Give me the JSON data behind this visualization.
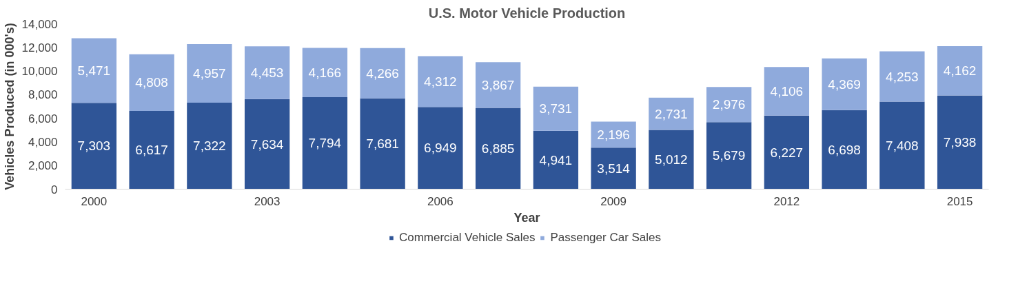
{
  "chart_data": {
    "type": "bar",
    "title": "U.S. Motor Vehicle Production",
    "xlabel": "Year",
    "ylabel": "Vehicles Produced (in 000's)",
    "categories": [
      "2000",
      null,
      null,
      "2003",
      null,
      null,
      "2006",
      null,
      null,
      "2009",
      null,
      null,
      "2012",
      null,
      null,
      "2015"
    ],
    "stacked": true,
    "series": [
      {
        "name": "Commercial Vehicle Sales",
        "color": "#2f5597",
        "values": [
          7303,
          6617,
          7322,
          7634,
          7794,
          7681,
          6949,
          6885,
          4941,
          3514,
          5012,
          5679,
          6227,
          6698,
          7408,
          7938
        ],
        "value_labels": [
          "7,303",
          "6,617",
          "7,322",
          "7,634",
          "7,794",
          "7,681",
          "6,949",
          "6,885",
          "4,941",
          "3,514",
          "5,012",
          "5,679",
          "6,227",
          "6,698",
          "7,408",
          "7,938"
        ]
      },
      {
        "name": "Passenger Car Sales",
        "color": "#8faadc",
        "values": [
          5471,
          4808,
          4957,
          4453,
          4166,
          4266,
          4312,
          3867,
          3731,
          2196,
          2731,
          2976,
          4106,
          4369,
          4253,
          4162
        ],
        "value_labels": [
          "5,471",
          "4,808",
          "4,957",
          "4,453",
          "4,166",
          "4,266",
          "4,312",
          "3,867",
          "3,731",
          "2,196",
          "2,731",
          "2,976",
          "4,106",
          "4,369",
          "4,253",
          "4,162"
        ]
      }
    ],
    "ylim": [
      0,
      14000
    ],
    "yticks": [
      0,
      {
        "value": 2000,
        "label": "2,000"
      },
      {
        "value": 4000,
        "label": "4,000"
      },
      {
        "value": 6000,
        "label": "6,000"
      },
      {
        "value": 8000,
        "label": "8,000"
      },
      {
        "value": 10000,
        "label": "10,000"
      },
      {
        "value": 12000,
        "label": "12,000"
      },
      {
        "value": 14000,
        "label": "14,000"
      }
    ],
    "legend": "bottom",
    "grid": false
  }
}
